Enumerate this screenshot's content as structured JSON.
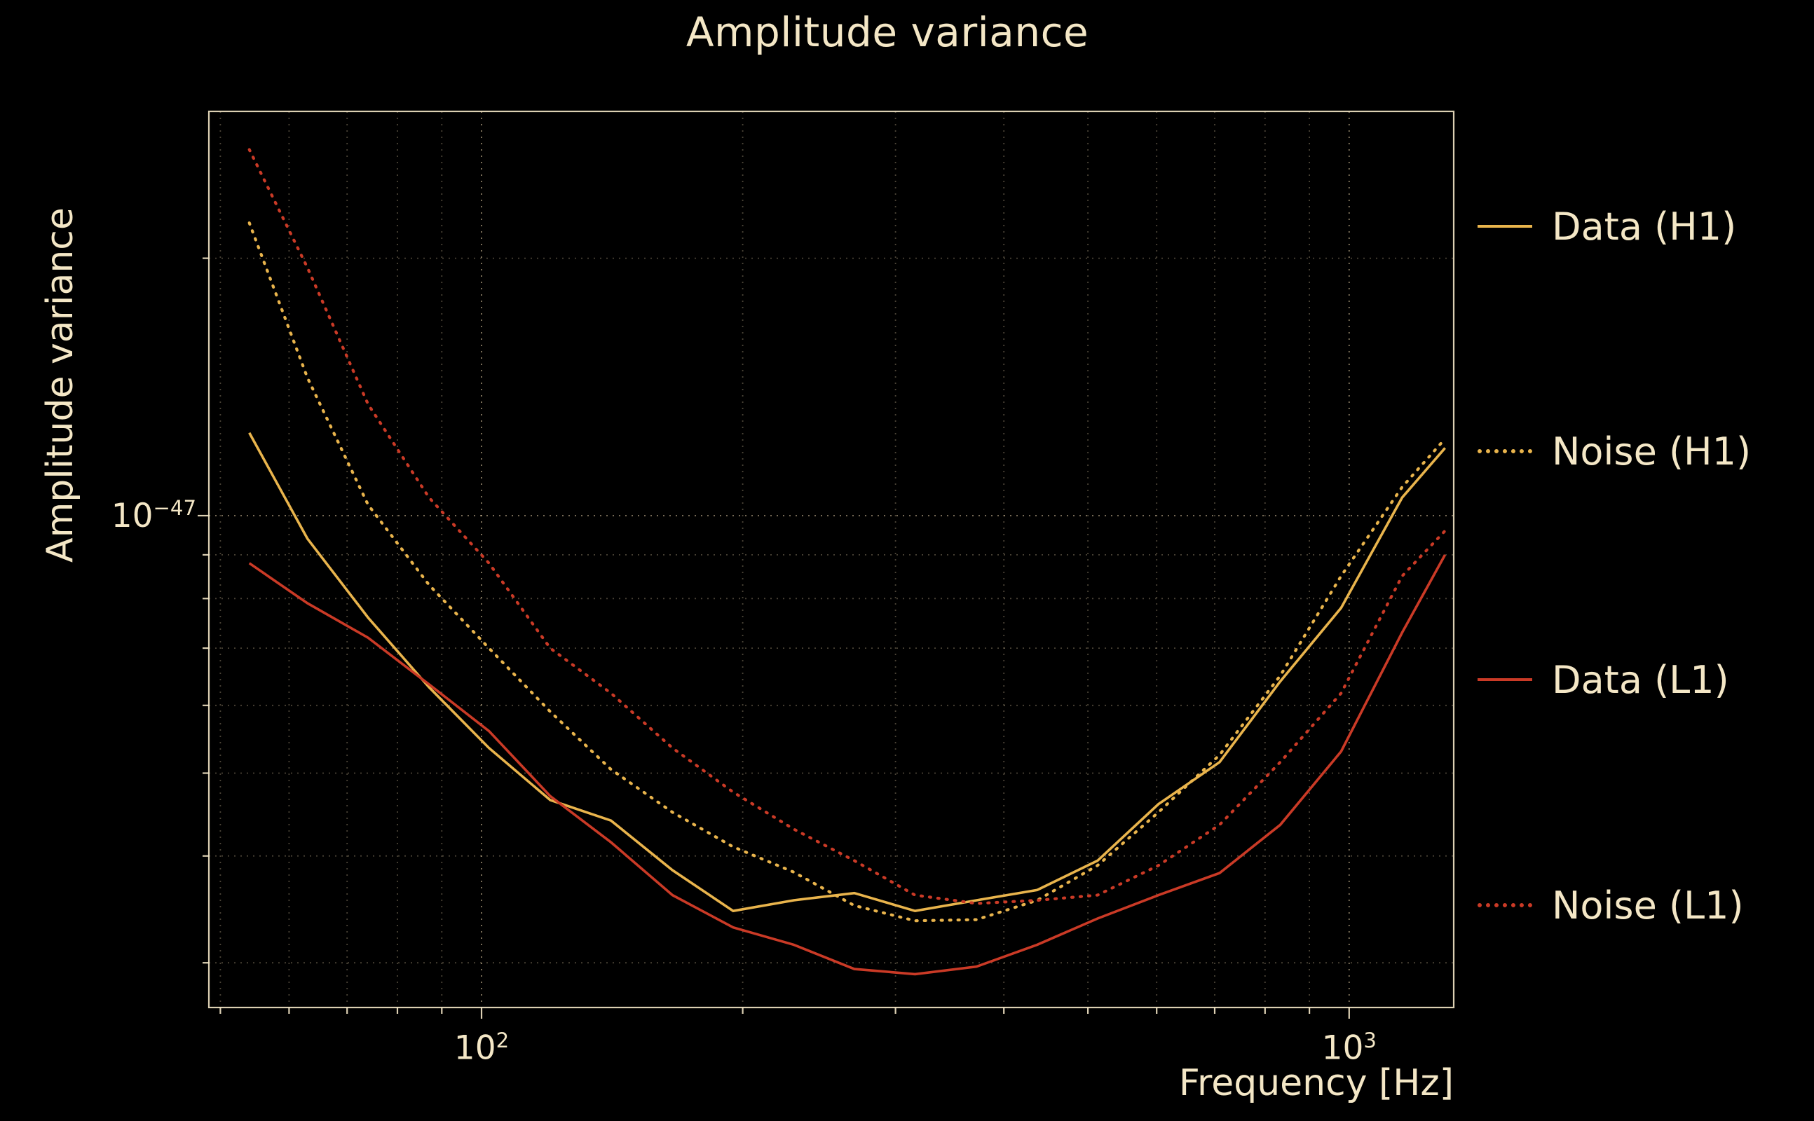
{
  "colors": {
    "background": "#000000",
    "text": "#f4e7c6",
    "gold": "#e9b44c",
    "red": "#ca3a26",
    "grid": "#f5deb3"
  },
  "legend": [
    {
      "label": "Data (H1)",
      "series": "data-h1",
      "color": "gold",
      "style": "solid"
    },
    {
      "label": "Noise (H1)",
      "series": "noise-h1",
      "color": "gold",
      "style": "dotted"
    },
    {
      "label": "Data (L1)",
      "series": "data-l1",
      "color": "red",
      "style": "solid"
    },
    {
      "label": "Noise (L1)",
      "series": "noise-l1",
      "color": "red",
      "style": "dotted"
    }
  ],
  "chart_data": {
    "type": "line",
    "title": "Amplitude variance",
    "xlabel": "Frequency [Hz]",
    "ylabel": "Amplitude variance",
    "xscale": "log",
    "yscale": "log",
    "grid": true,
    "legend_position": "right-outside",
    "xlim": [
      48.5,
      1320
    ],
    "ylim": [
      2.66e-48,
      2.97e-47
    ],
    "xticks": [
      {
        "base": "10",
        "sup": "2",
        "f": 100
      },
      {
        "base": "10",
        "sup": "3",
        "f": 1000
      }
    ],
    "yticks": [
      {
        "base": "10",
        "sup": "−47",
        "v": 1e-47
      }
    ],
    "x_gridlines": [
      50,
      60,
      70,
      80,
      90,
      100,
      200,
      300,
      400,
      500,
      600,
      700,
      800,
      900,
      1000
    ],
    "x_major": [
      100,
      1000
    ],
    "y_gridlines_e48": [
      3,
      4,
      5,
      6,
      7,
      8,
      9,
      10,
      20
    ],
    "y_major_e48": [
      10
    ],
    "x_hz": [
      54,
      63,
      74,
      87,
      102,
      120,
      141,
      166,
      195,
      229,
      269,
      316,
      372,
      437,
      513,
      603,
      709,
      833,
      979,
      1151,
      1290
    ],
    "value_units": "1e-48",
    "series": [
      {
        "name": "Data (H1)",
        "color": "gold",
        "style": "solid",
        "values_e48": [
          12.5,
          9.4,
          7.6,
          6.3,
          5.35,
          4.65,
          4.4,
          3.85,
          3.45,
          3.55,
          3.62,
          3.45,
          3.55,
          3.65,
          3.95,
          4.6,
          5.15,
          6.4,
          7.8,
          10.5,
          12.0
        ]
      },
      {
        "name": "Noise (H1)",
        "color": "gold",
        "style": "dotted",
        "values_e48": [
          22.0,
          14.5,
          10.3,
          8.3,
          7.0,
          5.9,
          5.05,
          4.5,
          4.1,
          3.83,
          3.5,
          3.36,
          3.37,
          3.55,
          3.9,
          4.5,
          5.25,
          6.5,
          8.5,
          10.8,
          12.3
        ]
      },
      {
        "name": "Data (L1)",
        "color": "red",
        "style": "solid",
        "values_e48": [
          8.8,
          7.9,
          7.2,
          6.35,
          5.6,
          4.7,
          4.15,
          3.6,
          3.3,
          3.15,
          2.95,
          2.91,
          2.97,
          3.15,
          3.38,
          3.6,
          3.82,
          4.35,
          5.3,
          7.3,
          9.0
        ]
      },
      {
        "name": "Noise (L1)",
        "color": "red",
        "style": "dotted",
        "values_e48": [
          26.8,
          19.5,
          13.5,
          10.5,
          8.8,
          7.0,
          6.2,
          5.35,
          4.75,
          4.3,
          3.95,
          3.6,
          3.52,
          3.55,
          3.6,
          3.9,
          4.35,
          5.15,
          6.2,
          8.5,
          9.6
        ]
      }
    ]
  }
}
